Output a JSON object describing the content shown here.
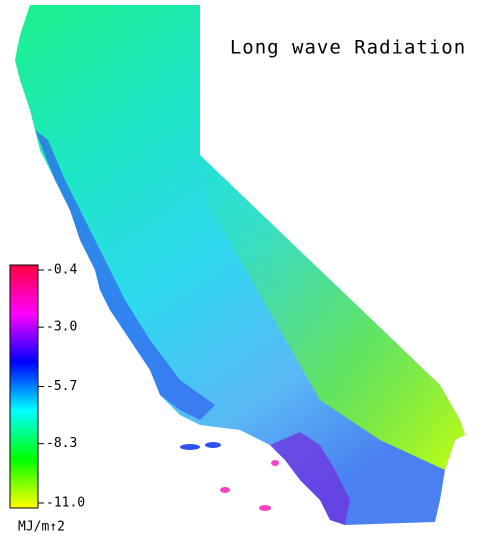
{
  "title": "Long wave Radiation",
  "colorbar": {
    "range": [
      -11.0,
      -0.4
    ],
    "ticks": [
      -0.4,
      {
        "value": -3.0,
        "label": "-3.0"
      },
      -5.7,
      -8.3,
      {
        "value": -11.0,
        "label": "-11.0"
      }
    ],
    "unit_label": "MJ/m↑2",
    "colors": [
      "#ffff00",
      "#00ff00",
      "#00ffff",
      "#0000ff",
      "#ff00ff",
      "#ff0040"
    ]
  }
}
